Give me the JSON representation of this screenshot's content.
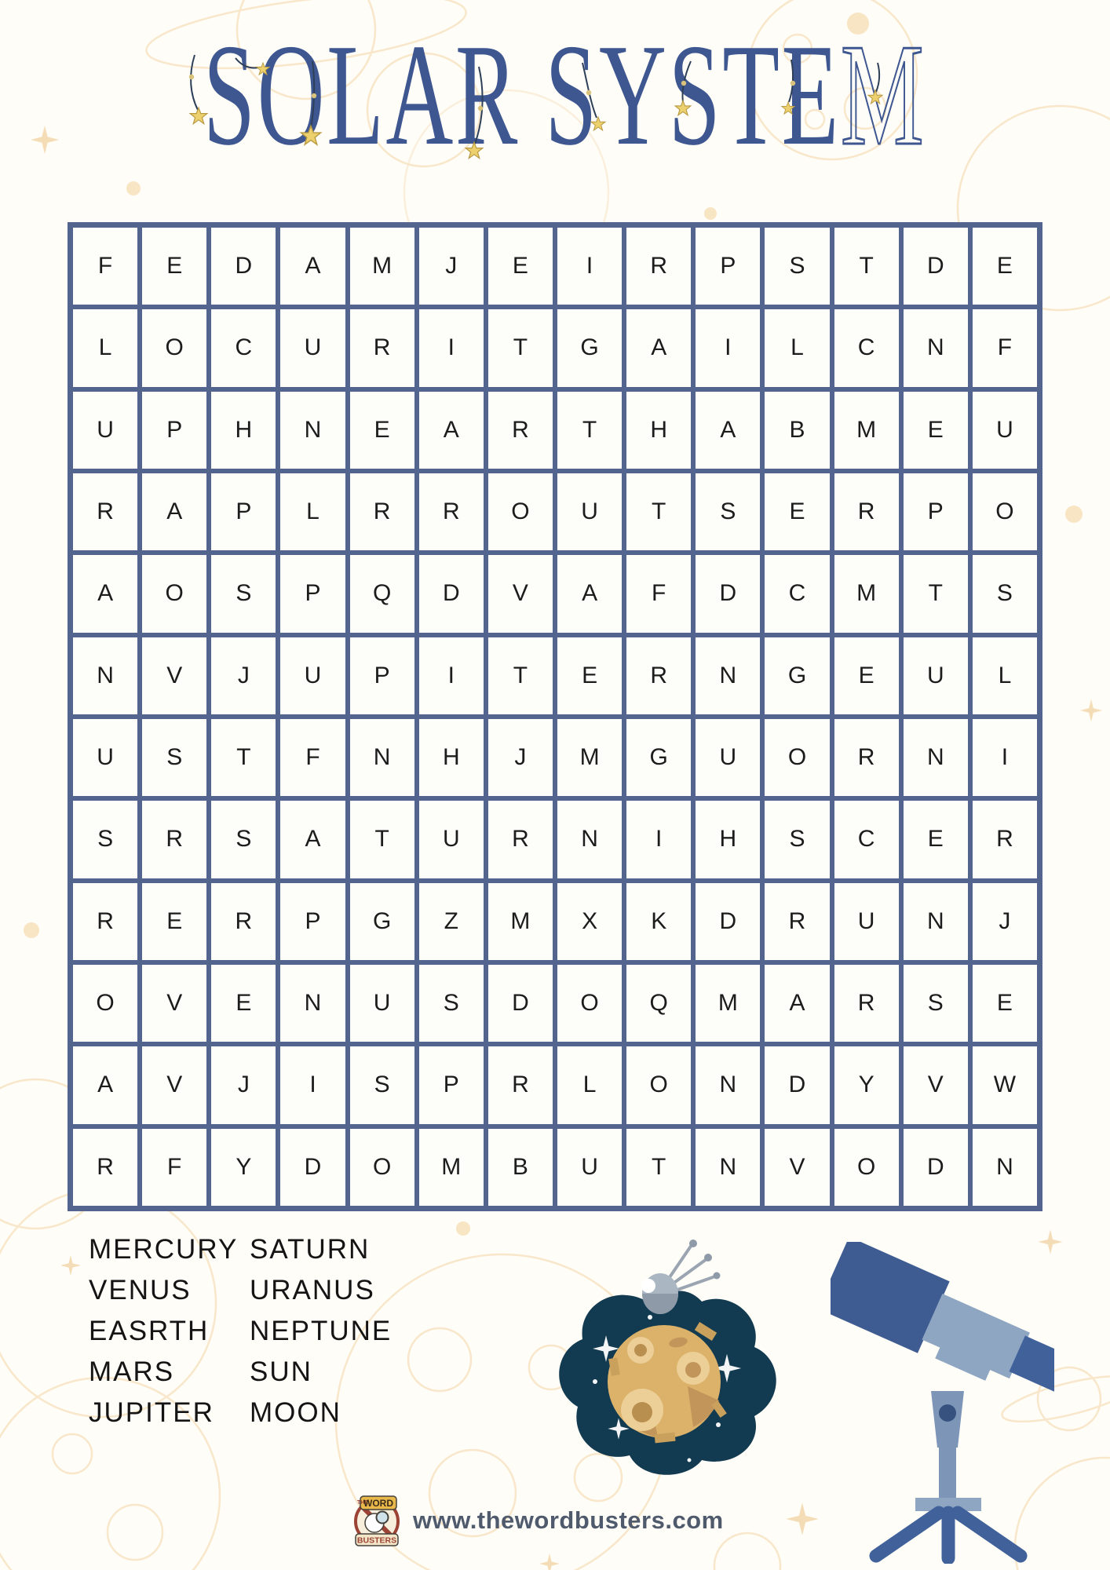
{
  "title": "SOLAR SYSTEM",
  "grid": {
    "columns": 14,
    "rows": [
      "FEDAMJEIRPSTDE",
      "LOCURITGAILCNF",
      "UPHNEARTHABMEU",
      "RAPLRROUTSERPO",
      "AOSPQDVAFDCMTS",
      "NVJUPITERNGEUL",
      "USTFNHJMGUORNI",
      "SRSATURNIHSCER",
      "RERPGZMXKDRUNJ",
      "OVENUSDOQMARSE",
      "AVJISPRLONDYVW",
      "RFYDOMBUTNVODN"
    ]
  },
  "words": {
    "left": [
      "MERCURY",
      "VENUS",
      "EASRTH",
      "MARS",
      "JUPITER"
    ],
    "right": [
      "SATURN",
      "URANUS",
      "NEPTUNE",
      "SUN",
      "MOON"
    ]
  },
  "footer": {
    "url": "www.thewordbusters.com",
    "logo": {
      "the": "THE",
      "top": "WORD",
      "bottom": "BUSTERS"
    }
  },
  "illustrations": {
    "moon": "cratered-moon-with-satellite-in-dark-space-blob",
    "telescope": "blue-telescope-on-tripod"
  },
  "colors": {
    "title_blue": "#3e5791",
    "grid_border": "#53648f",
    "letter_black": "#1c1c1c",
    "page_bg": "#fffdf7",
    "doodle_peach": "#f2d5a6",
    "star_yellow": "#ecd06d",
    "space_navy": "#123a50",
    "moon_tan": "#dcb26a",
    "telescope_dark": "#3f5c92",
    "telescope_light": "#8ea6c2",
    "url_gray": "#4f5b6d"
  }
}
